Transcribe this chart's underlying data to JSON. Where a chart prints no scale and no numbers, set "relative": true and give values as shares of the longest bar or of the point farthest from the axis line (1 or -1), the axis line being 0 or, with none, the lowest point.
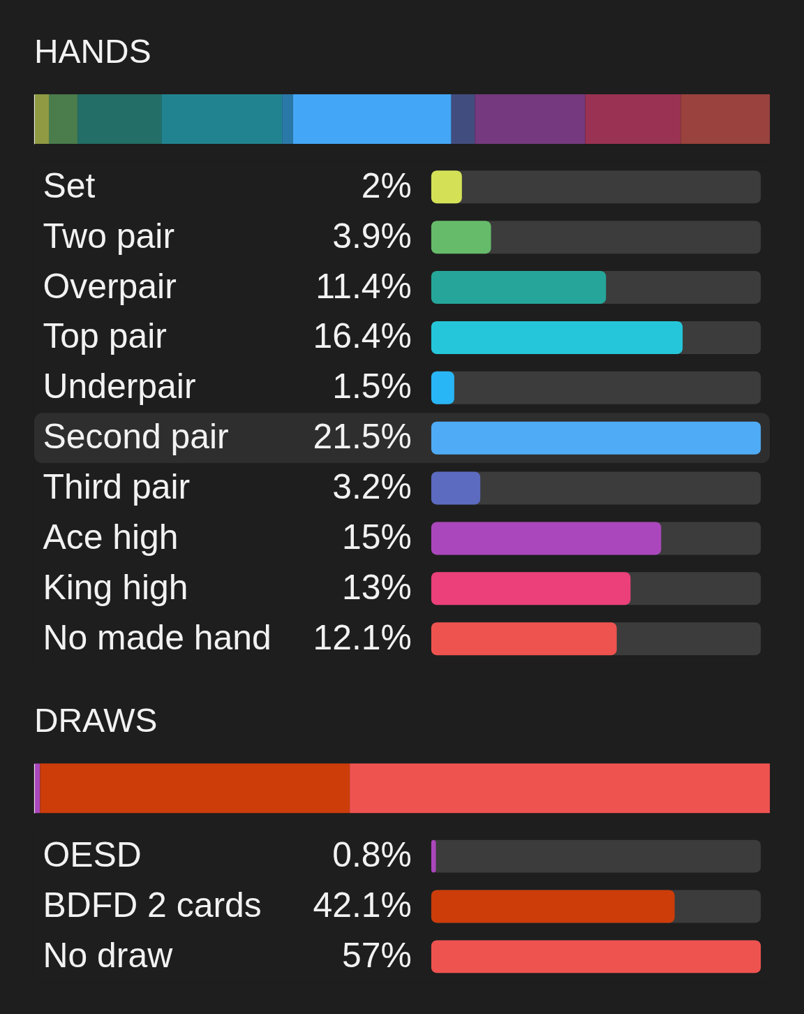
{
  "chart_data": [
    {
      "type": "bar",
      "title": "HANDS",
      "orientation": "horizontal",
      "stacked": true,
      "relative": true,
      "tick_labels": false,
      "categories": [
        null
      ],
      "series": [
        {
          "color": "#8f9a43",
          "values": [
            0.02
          ]
        },
        {
          "color": "#4a7c4c",
          "values": [
            0.039
          ]
        },
        {
          "color": "#236e66",
          "values": [
            0.114
          ]
        },
        {
          "color": "#228390",
          "values": [
            0.164
          ]
        },
        {
          "color": "#2a78a8",
          "values": [
            0.015
          ]
        },
        {
          "color": "#44a6f6",
          "values": [
            0.215
          ]
        },
        {
          "color": "#424d7f",
          "values": [
            0.032
          ]
        },
        {
          "color": "#74397e",
          "values": [
            0.15
          ]
        },
        {
          "color": "#9a3253",
          "values": [
            0.13
          ]
        },
        {
          "color": "#9a423d",
          "values": [
            0.121
          ]
        }
      ]
    },
    {
      "type": "bar",
      "orientation": "horizontal",
      "tick_labels": "y",
      "categories": [
        "Set",
        "Two pair",
        "Overpair",
        "Top pair",
        "Underpair",
        "Second pair",
        "Third pair",
        "Ace high",
        "King high",
        "No made hand"
      ],
      "values": [
        2,
        3.9,
        11.4,
        16.4,
        1.5,
        21.5,
        3.2,
        15,
        13,
        12.1
      ],
      "colors": [
        "#d4e157",
        "#66bb6a",
        "#26a69a",
        "#26c6da",
        "#29b6f6",
        "#4fabf5",
        "#5c6bc0",
        "#ab47bc",
        "#ec407a",
        "#ef5350"
      ],
      "value_labels": [
        "2%",
        "3.9%",
        "11.4%",
        "16.4%",
        "1.5%",
        "21.5%",
        "3.2%",
        "15%",
        "13%",
        "12.1%"
      ],
      "xlim": [
        0,
        21.5
      ],
      "bands": [
        {
          "axis": "y",
          "from": "Second pair",
          "to": "Second pair",
          "color": "#2e2e2e"
        }
      ]
    },
    {
      "type": "bar",
      "title": "DRAWS",
      "orientation": "horizontal",
      "stacked": true,
      "relative": true,
      "tick_labels": false,
      "categories": [
        null
      ],
      "series": [
        {
          "color": "#ab47bc",
          "values": [
            0.008
          ]
        },
        {
          "color": "#cc3d0a",
          "values": [
            0.421
          ]
        },
        {
          "color": "#ef5350",
          "values": [
            0.571
          ]
        }
      ]
    },
    {
      "type": "bar",
      "orientation": "horizontal",
      "tick_labels": "y",
      "categories": [
        "OESD",
        "BDFD 2 cards",
        "No draw"
      ],
      "values": [
        0.8,
        42.1,
        57
      ],
      "colors": [
        "#ab47bc",
        "#cc3d0a",
        "#ef5350"
      ],
      "value_labels": [
        "0.8%",
        "42.1%",
        "57%"
      ],
      "xlim": [
        0,
        57
      ]
    }
  ]
}
